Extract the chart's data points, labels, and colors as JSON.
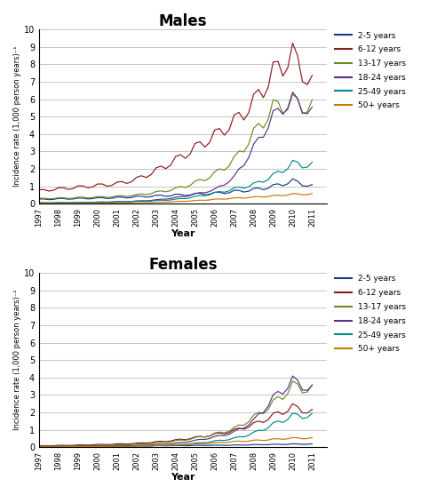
{
  "colors": {
    "2-5 years": "#1a3a8a",
    "6-12 years": "#8b1a1a",
    "13-17 years": "#6a8a20",
    "18-24 years": "#5b2f8a",
    "25-49 years": "#008b8b",
    "50+ years": "#cc7700"
  },
  "age_groups": [
    "2-5 years",
    "6-12 years",
    "13-17 years",
    "18-24 years",
    "25-49 years",
    "50+ years"
  ],
  "ylabel": "Incidence rate (1,000 person years)⁻¹",
  "xlabel": "Year",
  "title_males": "Males",
  "title_females": "Females",
  "ylim": [
    0,
    10
  ],
  "yticks": [
    0,
    1,
    2,
    3,
    4,
    5,
    6,
    7,
    8,
    9,
    10
  ],
  "year_labels": [
    "1997",
    "1998",
    "1999",
    "2000",
    "2001",
    "2002",
    "2003",
    "2004",
    "2005",
    "2006",
    "2007",
    "2008",
    "2009",
    "2010",
    "2011"
  ]
}
